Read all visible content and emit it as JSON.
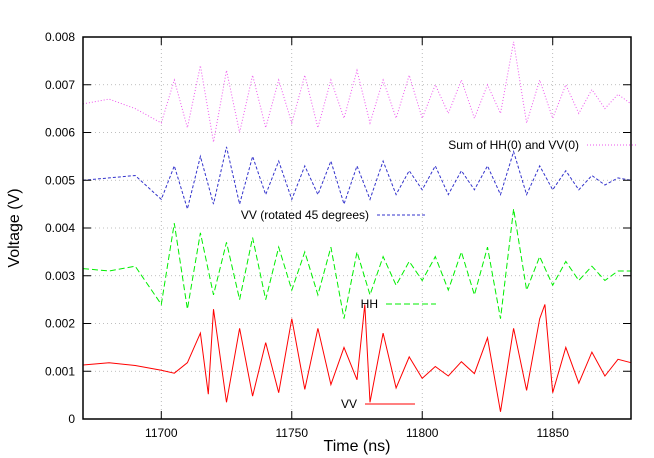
{
  "chart_data": {
    "type": "line",
    "xlabel": "Time (ns)",
    "ylabel": "Voltage (V)",
    "xlim": [
      11670,
      11880
    ],
    "ylim": [
      0,
      0.008
    ],
    "x_ticks": [
      11700,
      11750,
      11800,
      11850
    ],
    "y_ticks": [
      0,
      0.001,
      0.002,
      0.003,
      0.004,
      0.005,
      0.006,
      0.007,
      0.008
    ],
    "x_tick_labels": [
      "11700",
      "11750",
      "11800",
      "11850"
    ],
    "y_tick_labels": [
      "0",
      "0.001",
      "0.002",
      "0.003",
      "0.004",
      "0.005",
      "0.006",
      "0.007",
      "0.008"
    ],
    "grid": true,
    "series": [
      {
        "name": "VV",
        "color": "#ff0000",
        "dash": "solid",
        "x": [
          11670,
          11680,
          11690,
          11700,
          11705,
          11710,
          11715,
          11718,
          11720,
          11725,
          11730,
          11735,
          11740,
          11745,
          11750,
          11755,
          11760,
          11765,
          11770,
          11775,
          11778,
          11780,
          11785,
          11790,
          11795,
          11800,
          11805,
          11810,
          11815,
          11820,
          11825,
          11830,
          11835,
          11840,
          11845,
          11847,
          11850,
          11855,
          11860,
          11865,
          11870,
          11875,
          11880
        ],
        "values": [
          0.00113,
          0.00118,
          0.00112,
          0.00102,
          0.00096,
          0.00118,
          0.0018,
          0.00052,
          0.0023,
          0.00035,
          0.0019,
          0.00048,
          0.0016,
          0.00055,
          0.0021,
          0.00062,
          0.0019,
          0.00072,
          0.0015,
          0.00082,
          0.0024,
          0.00035,
          0.0018,
          0.00065,
          0.0013,
          0.00085,
          0.0011,
          0.0009,
          0.0012,
          0.00095,
          0.0017,
          0.00015,
          0.0019,
          0.0006,
          0.0021,
          0.0024,
          0.00055,
          0.0015,
          0.00075,
          0.0014,
          0.0009,
          0.00125,
          0.00118
        ]
      },
      {
        "name": "HH",
        "color": "#00ee00",
        "dash": "longdash",
        "x": [
          11670,
          11680,
          11690,
          11700,
          11705,
          11710,
          11715,
          11720,
          11725,
          11730,
          11735,
          11740,
          11745,
          11750,
          11755,
          11760,
          11765,
          11770,
          11775,
          11780,
          11785,
          11790,
          11795,
          11800,
          11805,
          11810,
          11815,
          11820,
          11825,
          11830,
          11835,
          11840,
          11845,
          11850,
          11855,
          11860,
          11865,
          11870,
          11875,
          11880
        ],
        "values": [
          0.00315,
          0.0031,
          0.0032,
          0.0024,
          0.0041,
          0.0023,
          0.0039,
          0.0026,
          0.0037,
          0.0025,
          0.0038,
          0.0025,
          0.0036,
          0.0027,
          0.0035,
          0.0026,
          0.0036,
          0.0021,
          0.0035,
          0.0026,
          0.0034,
          0.0028,
          0.0033,
          0.0029,
          0.0034,
          0.0027,
          0.0035,
          0.0026,
          0.0036,
          0.0021,
          0.0044,
          0.0027,
          0.0034,
          0.0028,
          0.0033,
          0.0029,
          0.0032,
          0.0029,
          0.0031,
          0.0031
        ]
      },
      {
        "name": "VV (rotated 45 degrees)",
        "color": "#3333cc",
        "dash": "shortdash",
        "x": [
          11670,
          11680,
          11690,
          11700,
          11705,
          11710,
          11715,
          11720,
          11725,
          11730,
          11735,
          11740,
          11745,
          11750,
          11755,
          11760,
          11765,
          11770,
          11775,
          11780,
          11785,
          11790,
          11795,
          11800,
          11805,
          11810,
          11815,
          11820,
          11825,
          11830,
          11835,
          11840,
          11845,
          11850,
          11855,
          11860,
          11865,
          11870,
          11875,
          11880
        ],
        "values": [
          0.005,
          0.00505,
          0.0051,
          0.0046,
          0.0053,
          0.0044,
          0.0055,
          0.0045,
          0.0057,
          0.0045,
          0.0055,
          0.0047,
          0.0054,
          0.0046,
          0.0053,
          0.0047,
          0.0054,
          0.0045,
          0.0053,
          0.0046,
          0.0054,
          0.0047,
          0.0052,
          0.0048,
          0.0053,
          0.0047,
          0.0052,
          0.0048,
          0.0053,
          0.0047,
          0.0056,
          0.0047,
          0.0053,
          0.0048,
          0.0052,
          0.0048,
          0.0051,
          0.0049,
          0.00505,
          0.005
        ]
      },
      {
        "name": "Sum of HH(0) and VV(0)",
        "color": "#ee55ee",
        "dash": "dotted",
        "x": [
          11670,
          11680,
          11690,
          11700,
          11705,
          11710,
          11715,
          11720,
          11725,
          11730,
          11735,
          11740,
          11745,
          11750,
          11755,
          11760,
          11765,
          11770,
          11775,
          11780,
          11785,
          11790,
          11795,
          11800,
          11805,
          11810,
          11815,
          11820,
          11825,
          11830,
          11835,
          11840,
          11845,
          11850,
          11855,
          11860,
          11865,
          11870,
          11875,
          11880
        ],
        "values": [
          0.0066,
          0.0067,
          0.0065,
          0.0062,
          0.0071,
          0.0061,
          0.0074,
          0.0058,
          0.0073,
          0.006,
          0.0072,
          0.0061,
          0.0071,
          0.0062,
          0.0072,
          0.0061,
          0.0071,
          0.0063,
          0.0073,
          0.0062,
          0.0071,
          0.0063,
          0.0072,
          0.0063,
          0.007,
          0.0064,
          0.0071,
          0.0063,
          0.007,
          0.0064,
          0.0079,
          0.0062,
          0.0071,
          0.0063,
          0.007,
          0.0064,
          0.0069,
          0.0065,
          0.0068,
          0.0066
        ]
      }
    ],
    "legend": [
      {
        "label": "Sum of HH(0) and VV(0)",
        "color": "#ee55ee",
        "dash": "dotted"
      },
      {
        "label": "VV (rotated 45 degrees)",
        "color": "#3333cc",
        "dash": "shortdash"
      },
      {
        "label": "HH",
        "color": "#00ee00",
        "dash": "longdash"
      },
      {
        "label": "VV",
        "color": "#ff0000",
        "dash": "solid"
      }
    ]
  }
}
